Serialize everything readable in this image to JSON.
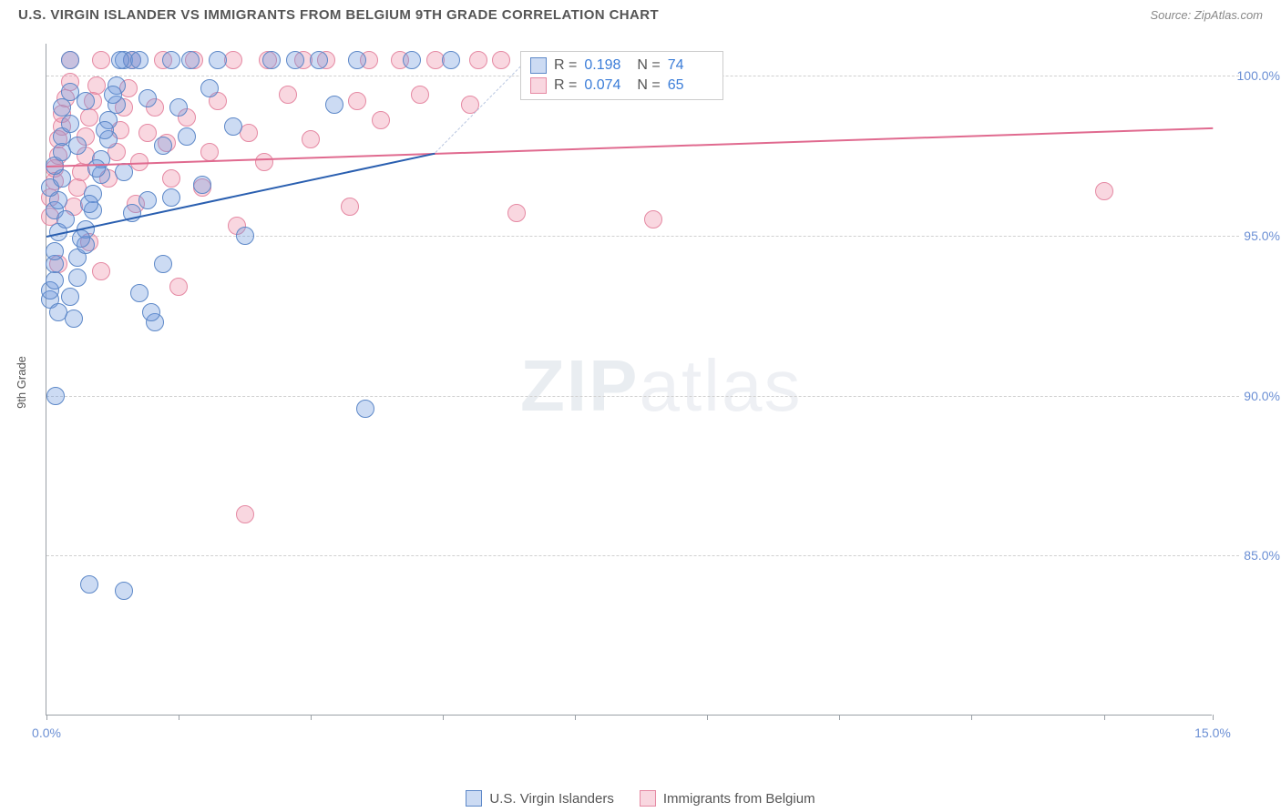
{
  "title": "U.S. VIRGIN ISLANDER VS IMMIGRANTS FROM BELGIUM 9TH GRADE CORRELATION CHART",
  "source_label": "Source: ZipAtlas.com",
  "yaxis_title": "9th Grade",
  "watermark": {
    "bold": "ZIP",
    "rest": "atlas"
  },
  "colors": {
    "series_a_fill": "rgba(109,153,222,0.35)",
    "series_a_stroke": "#5d88c8",
    "series_a_line": "#2a5fb0",
    "series_b_fill": "rgba(235,130,160,0.32)",
    "series_b_stroke": "#e589a3",
    "series_b_line": "#e06a8f",
    "tick_text": "#6b8fd4",
    "grid": "#d0d0d0",
    "axis": "#9aa0a6"
  },
  "chart": {
    "type": "scatter",
    "xlim": [
      0.0,
      15.0
    ],
    "ylim": [
      80.0,
      101.0
    ],
    "yticks": [
      85.0,
      90.0,
      95.0,
      100.0
    ],
    "ytick_labels": [
      "85.0%",
      "90.0%",
      "95.0%",
      "100.0%"
    ],
    "xticks": [
      0.0,
      1.7,
      3.4,
      5.1,
      6.8,
      8.5,
      10.2,
      11.9,
      13.6,
      15.0
    ],
    "xtick_labels": {
      "0": "0.0%",
      "15": "15.0%"
    },
    "marker_radius": 10,
    "marker_stroke_width": 1.2,
    "trend_width": 2
  },
  "series_a": {
    "name": "U.S. Virgin Islanders",
    "trend": {
      "x1": 0.0,
      "y1": 95.0,
      "x2": 5.0,
      "y2": 97.6
    },
    "points": [
      [
        0.05,
        93.0
      ],
      [
        0.05,
        93.3
      ],
      [
        0.1,
        93.6
      ],
      [
        0.1,
        94.1
      ],
      [
        0.1,
        94.5
      ],
      [
        0.15,
        95.1
      ],
      [
        0.1,
        95.8
      ],
      [
        0.15,
        96.1
      ],
      [
        0.05,
        96.5
      ],
      [
        0.2,
        96.8
      ],
      [
        0.1,
        97.2
      ],
      [
        0.2,
        97.6
      ],
      [
        0.2,
        98.1
      ],
      [
        0.3,
        98.5
      ],
      [
        0.2,
        99.0
      ],
      [
        0.3,
        99.5
      ],
      [
        0.3,
        100.5
      ],
      [
        0.15,
        92.6
      ],
      [
        0.3,
        93.1
      ],
      [
        0.4,
        93.7
      ],
      [
        0.4,
        94.3
      ],
      [
        0.5,
        94.7
      ],
      [
        0.5,
        95.2
      ],
      [
        0.6,
        95.8
      ],
      [
        0.6,
        96.3
      ],
      [
        0.7,
        96.9
      ],
      [
        0.7,
        97.4
      ],
      [
        0.8,
        98.0
      ],
      [
        0.8,
        98.6
      ],
      [
        0.9,
        99.1
      ],
      [
        0.9,
        99.7
      ],
      [
        1.0,
        100.5
      ],
      [
        0.35,
        92.4
      ],
      [
        0.45,
        94.9
      ],
      [
        0.55,
        96.0
      ],
      [
        0.65,
        97.1
      ],
      [
        0.75,
        98.3
      ],
      [
        0.85,
        99.4
      ],
      [
        1.1,
        100.5
      ],
      [
        1.2,
        100.5
      ],
      [
        1.0,
        97.0
      ],
      [
        1.1,
        95.7
      ],
      [
        1.2,
        93.2
      ],
      [
        1.3,
        99.3
      ],
      [
        1.4,
        92.3
      ],
      [
        1.5,
        97.8
      ],
      [
        1.5,
        94.1
      ],
      [
        1.6,
        100.5
      ],
      [
        1.6,
        96.2
      ],
      [
        1.7,
        99.0
      ],
      [
        1.8,
        98.1
      ],
      [
        1.85,
        100.5
      ],
      [
        2.0,
        96.6
      ],
      [
        2.1,
        99.6
      ],
      [
        2.2,
        100.5
      ],
      [
        2.4,
        98.4
      ],
      [
        2.55,
        95.0
      ],
      [
        2.9,
        100.5
      ],
      [
        3.2,
        100.5
      ],
      [
        3.5,
        100.5
      ],
      [
        3.7,
        99.1
      ],
      [
        4.0,
        100.5
      ],
      [
        4.7,
        100.5
      ],
      [
        5.2,
        100.5
      ],
      [
        0.12,
        90.0
      ],
      [
        4.1,
        89.6
      ],
      [
        0.55,
        84.1
      ],
      [
        1.0,
        83.9
      ],
      [
        0.95,
        100.5
      ],
      [
        1.3,
        96.1
      ],
      [
        1.35,
        92.6
      ],
      [
        0.25,
        95.5
      ],
      [
        0.4,
        97.8
      ],
      [
        0.5,
        99.2
      ]
    ]
  },
  "series_b": {
    "name": "Immigrants from Belgium",
    "trend": {
      "x1": 0.0,
      "y1": 97.2,
      "x2": 15.0,
      "y2": 98.4
    },
    "points": [
      [
        0.05,
        95.6
      ],
      [
        0.05,
        96.2
      ],
      [
        0.1,
        96.7
      ],
      [
        0.1,
        97.1
      ],
      [
        0.15,
        97.5
      ],
      [
        0.15,
        98.0
      ],
      [
        0.2,
        98.4
      ],
      [
        0.2,
        98.8
      ],
      [
        0.25,
        99.3
      ],
      [
        0.3,
        99.8
      ],
      [
        0.3,
        100.5
      ],
      [
        0.15,
        94.1
      ],
      [
        0.35,
        95.9
      ],
      [
        0.4,
        96.5
      ],
      [
        0.45,
        97.0
      ],
      [
        0.5,
        97.5
      ],
      [
        0.5,
        98.1
      ],
      [
        0.55,
        98.7
      ],
      [
        0.6,
        99.2
      ],
      [
        0.65,
        99.7
      ],
      [
        0.7,
        100.5
      ],
      [
        0.8,
        96.8
      ],
      [
        0.9,
        97.6
      ],
      [
        0.95,
        98.3
      ],
      [
        1.0,
        99.0
      ],
      [
        1.05,
        99.6
      ],
      [
        1.1,
        100.5
      ],
      [
        1.2,
        97.3
      ],
      [
        1.3,
        98.2
      ],
      [
        1.4,
        99.0
      ],
      [
        1.5,
        100.5
      ],
      [
        1.55,
        97.9
      ],
      [
        1.7,
        93.4
      ],
      [
        1.8,
        98.7
      ],
      [
        1.9,
        100.5
      ],
      [
        2.0,
        96.5
      ],
      [
        2.2,
        99.2
      ],
      [
        2.4,
        100.5
      ],
      [
        2.45,
        95.3
      ],
      [
        2.6,
        98.2
      ],
      [
        2.8,
        97.3
      ],
      [
        2.85,
        100.5
      ],
      [
        3.1,
        99.4
      ],
      [
        3.3,
        100.5
      ],
      [
        3.4,
        98.0
      ],
      [
        3.6,
        100.5
      ],
      [
        3.9,
        95.9
      ],
      [
        4.0,
        99.2
      ],
      [
        4.15,
        100.5
      ],
      [
        4.3,
        98.6
      ],
      [
        4.55,
        100.5
      ],
      [
        4.8,
        99.4
      ],
      [
        5.0,
        100.5
      ],
      [
        5.45,
        99.1
      ],
      [
        5.55,
        100.5
      ],
      [
        5.85,
        100.5
      ],
      [
        6.05,
        95.7
      ],
      [
        7.8,
        95.5
      ],
      [
        13.6,
        96.4
      ],
      [
        2.55,
        86.3
      ],
      [
        1.15,
        96.0
      ],
      [
        0.55,
        94.8
      ],
      [
        0.7,
        93.9
      ],
      [
        1.6,
        96.8
      ],
      [
        2.1,
        97.6
      ]
    ]
  },
  "stats_box": {
    "rows": [
      {
        "swatch": "a",
        "r_label": "R =",
        "r_val": "0.198",
        "n_label": "N =",
        "n_val": "74"
      },
      {
        "swatch": "b",
        "r_label": "R =",
        "r_val": "0.074",
        "n_label": "N =",
        "n_val": "65"
      }
    ]
  },
  "legend": {
    "a": "U.S. Virgin Islanders",
    "b": "Immigrants from Belgium"
  }
}
